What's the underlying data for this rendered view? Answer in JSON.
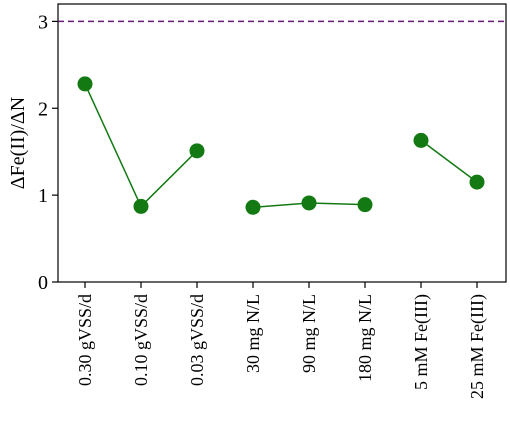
{
  "chart_data": {
    "type": "scatter",
    "ylabel": "ΔFe(II)/ΔN",
    "xlabel": "",
    "ylim": [
      0,
      3.2
    ],
    "yticks": [
      0,
      1,
      2,
      3
    ],
    "categories": [
      "0.30 gVSS/d",
      "0.10 gVSS/d",
      "0.03 gVSS/d",
      "30 mg N/L",
      "90 mg N/L",
      "180 mg N/L",
      "5 mM Fe(III)",
      "25 mM Fe(III)"
    ],
    "values": [
      2.28,
      0.87,
      1.51,
      0.86,
      0.91,
      0.89,
      1.63,
      1.15
    ],
    "line_groups": [
      [
        0,
        1,
        2
      ],
      [
        3,
        4,
        5
      ],
      [
        6,
        7
      ]
    ],
    "reference_line": {
      "y": 3,
      "style": "dashed",
      "color": "#6a1a7a"
    },
    "marker_color": "#137a13",
    "line_color": "#137a13",
    "grid": false,
    "legend": "none"
  }
}
